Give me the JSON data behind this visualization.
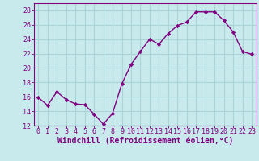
{
  "x": [
    0,
    1,
    2,
    3,
    4,
    5,
    6,
    7,
    8,
    9,
    10,
    11,
    12,
    13,
    14,
    15,
    16,
    17,
    18,
    19,
    20,
    21,
    22,
    23
  ],
  "y": [
    15.9,
    14.8,
    16.7,
    15.6,
    15.0,
    14.9,
    13.6,
    12.2,
    13.7,
    17.8,
    20.5,
    22.3,
    24.0,
    23.3,
    24.8,
    25.9,
    26.4,
    27.8,
    27.8,
    27.8,
    26.6,
    25.0,
    22.3,
    21.9
  ],
  "line_color": "#800080",
  "marker": "D",
  "marker_size": 2.2,
  "line_width": 1.0,
  "xlabel": "Windchill (Refroidissement éolien,°C)",
  "xlabel_fontsize": 7,
  "ylim": [
    12,
    29
  ],
  "xlim": [
    -0.5,
    23.5
  ],
  "yticks": [
    12,
    14,
    16,
    18,
    20,
    22,
    24,
    26,
    28
  ],
  "xticks": [
    0,
    1,
    2,
    3,
    4,
    5,
    6,
    7,
    8,
    9,
    10,
    11,
    12,
    13,
    14,
    15,
    16,
    17,
    18,
    19,
    20,
    21,
    22,
    23
  ],
  "bg_color": "#c8eaec",
  "grid_color": "#aad4d8",
  "tick_color": "#800080",
  "tick_fontsize": 6,
  "spine_color": "#800080"
}
